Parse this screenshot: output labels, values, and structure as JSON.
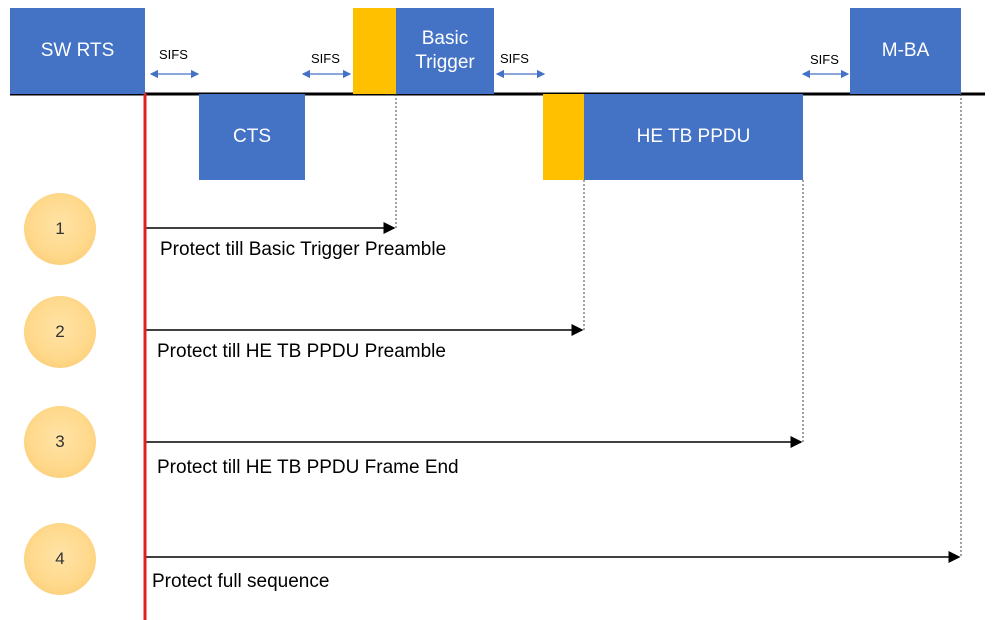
{
  "frames": {
    "sw_rts": "SW RTS",
    "cts": "CTS",
    "basic_trigger": "Basic\nTrigger",
    "he_tb_ppdu": "HE TB PPDU",
    "m_ba": "M-BA"
  },
  "sifs": [
    "SIFS",
    "SIFS",
    "SIFS",
    "SIFS"
  ],
  "options": [
    {
      "number": "1",
      "caption": "Protect till Basic Trigger Preamble"
    },
    {
      "number": "2",
      "caption": "Protect till HE TB PPDU Preamble"
    },
    {
      "number": "3",
      "caption": "Protect till HE TB PPDU Frame End"
    },
    {
      "number": "4",
      "caption": "Protect full sequence"
    }
  ],
  "colors": {
    "frame": "#4472C4",
    "preamble": "#FFC000",
    "start_line": "#E0201E",
    "circle": "#FFD98C"
  }
}
